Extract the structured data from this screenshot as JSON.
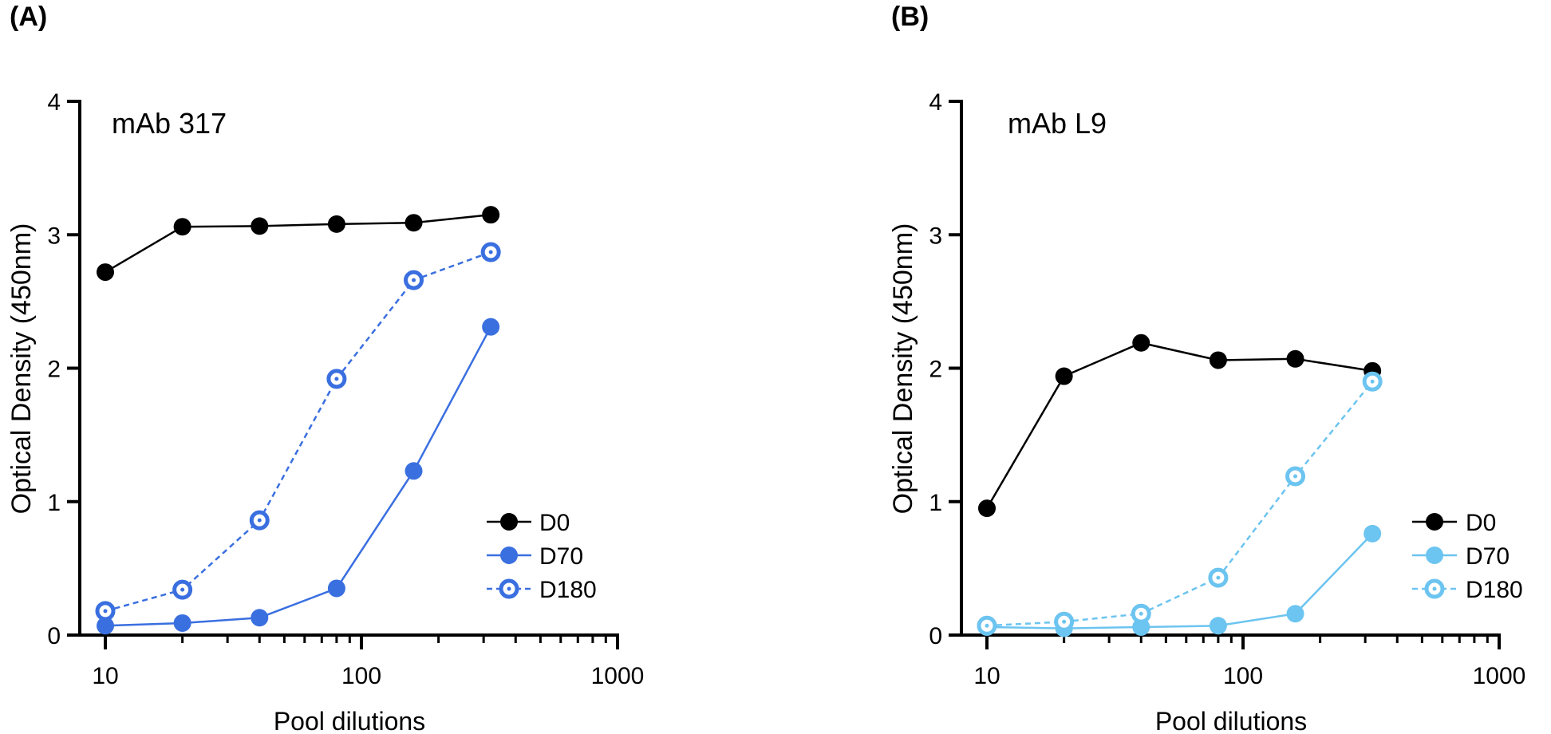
{
  "chart_data": [
    {
      "type": "line",
      "panel_label": "(A)",
      "title": "mAb 317",
      "xlabel": "Pool dilutions",
      "ylabel": "Optical Density  (450nm)",
      "xscale": "log",
      "xlim": [
        10,
        1000
      ],
      "ylim": [
        0,
        4
      ],
      "xticks": [
        10,
        100,
        1000
      ],
      "xtick_labels": [
        "10",
        "100",
        "1000"
      ],
      "yticks": [
        0,
        1,
        2,
        3,
        4
      ],
      "ytick_labels": [
        "0",
        "1",
        "2",
        "3",
        "4"
      ],
      "grid": false,
      "legend_position": "bottom-right",
      "x": [
        10,
        20,
        40,
        80,
        160,
        320
      ],
      "series": [
        {
          "name": "D0",
          "values": [
            2.72,
            3.06,
            3.065,
            3.08,
            3.09,
            3.15
          ],
          "color": "#000000",
          "marker": "filled",
          "line": "solid"
        },
        {
          "name": "D70",
          "values": [
            0.07,
            0.09,
            0.13,
            0.35,
            1.23,
            2.31
          ],
          "color": "#3a6fe0",
          "marker": "filled",
          "line": "solid"
        },
        {
          "name": "D180",
          "values": [
            0.18,
            0.34,
            0.86,
            1.92,
            2.66,
            2.87
          ],
          "color": "#3a6fe0",
          "marker": "open-dot",
          "line": "dashed"
        }
      ]
    },
    {
      "type": "line",
      "panel_label": "(B)",
      "title": "mAb L9",
      "xlabel": "Pool dilutions",
      "ylabel": "Optical Density  (450nm)",
      "xscale": "log",
      "xlim": [
        10,
        1000
      ],
      "ylim": [
        0,
        4
      ],
      "xticks": [
        10,
        100,
        1000
      ],
      "xtick_labels": [
        "10",
        "100",
        "1000"
      ],
      "yticks": [
        0,
        1,
        2,
        3,
        4
      ],
      "ytick_labels": [
        "0",
        "1",
        "2",
        "3",
        "4"
      ],
      "grid": false,
      "legend_position": "bottom-right",
      "x": [
        10,
        20,
        40,
        80,
        160,
        320
      ],
      "series": [
        {
          "name": "D0",
          "values": [
            0.95,
            1.94,
            2.19,
            2.06,
            2.07,
            1.98
          ],
          "color": "#000000",
          "marker": "filled",
          "line": "solid"
        },
        {
          "name": "D70",
          "values": [
            0.06,
            0.05,
            0.06,
            0.07,
            0.16,
            0.76
          ],
          "color": "#6cc4f0",
          "marker": "filled",
          "line": "solid"
        },
        {
          "name": "D180",
          "values": [
            0.07,
            0.1,
            0.16,
            0.43,
            1.19,
            1.9
          ],
          "color": "#6cc4f0",
          "marker": "open-dot",
          "line": "dashed"
        }
      ]
    }
  ]
}
